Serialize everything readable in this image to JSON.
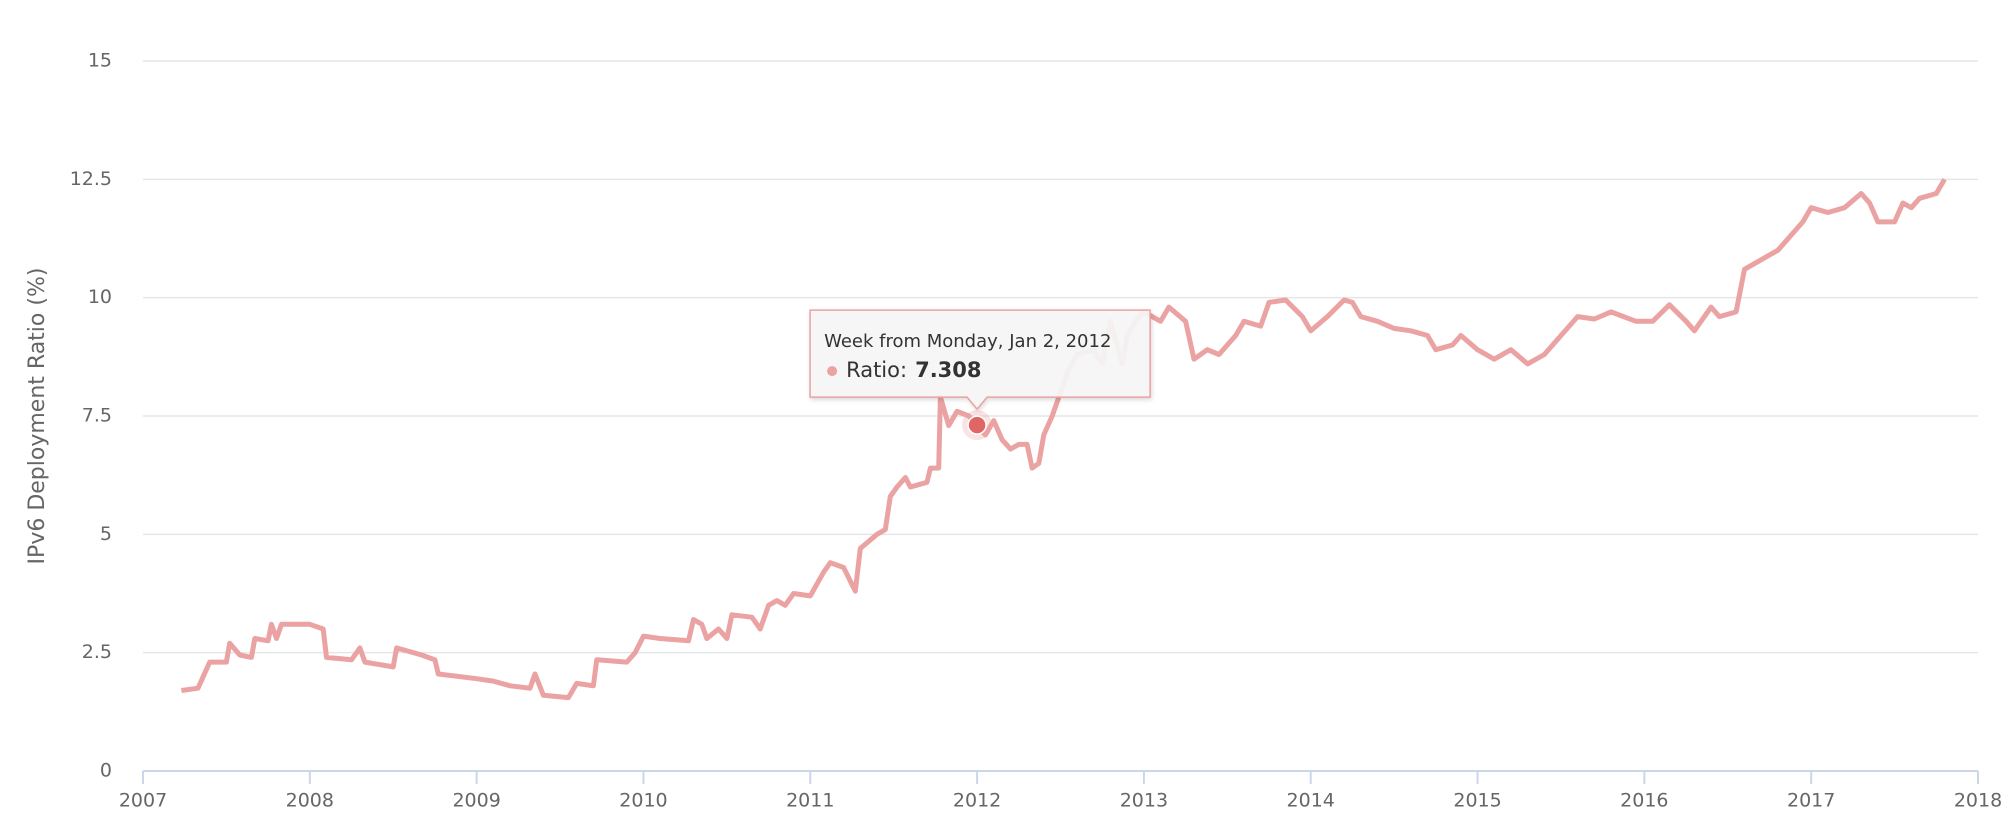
{
  "chart_data": {
    "type": "line",
    "y_label": "IPv6 Deployment Ratio (%)",
    "xlim": [
      2007,
      2018
    ],
    "xticks": [
      2007,
      2008,
      2009,
      2010,
      2011,
      2012,
      2013,
      2014,
      2015,
      2016,
      2017,
      2018
    ],
    "ylim": [
      0,
      15
    ],
    "yticks": [
      0,
      2.5,
      5,
      7.5,
      10,
      12.5,
      15
    ],
    "grid": true,
    "color": "#eba2a2",
    "x": [
      2007.23,
      2007.33,
      2007.4,
      2007.5,
      2007.52,
      2007.58,
      2007.65,
      2007.67,
      2007.75,
      2007.77,
      2007.8,
      2007.83,
      2008.0,
      2008.08,
      2008.1,
      2008.25,
      2008.3,
      2008.33,
      2008.5,
      2008.52,
      2008.67,
      2008.75,
      2008.77,
      2009.0,
      2009.1,
      2009.2,
      2009.32,
      2009.35,
      2009.4,
      2009.55,
      2009.6,
      2009.7,
      2009.72,
      2009.9,
      2009.95,
      2010.0,
      2010.1,
      2010.27,
      2010.3,
      2010.35,
      2010.38,
      2010.45,
      2010.5,
      2010.53,
      2010.65,
      2010.7,
      2010.75,
      2010.8,
      2010.85,
      2010.9,
      2011.0,
      2011.08,
      2011.12,
      2011.2,
      2011.27,
      2011.3,
      2011.4,
      2011.45,
      2011.48,
      2011.52,
      2011.57,
      2011.6,
      2011.7,
      2011.72,
      2011.77,
      2011.78,
      2011.83,
      2011.88,
      2011.95,
      2012.0,
      2012.05,
      2012.1,
      2012.15,
      2012.2,
      2012.25,
      2012.3,
      2012.33,
      2012.37,
      2012.4,
      2012.45,
      2012.5,
      2012.55,
      2012.6,
      2012.7,
      2012.75,
      2012.8,
      2012.87,
      2012.9,
      2012.95,
      2013.0,
      2013.1,
      2013.15,
      2013.25,
      2013.3,
      2013.38,
      2013.45,
      2013.55,
      2013.6,
      2013.7,
      2013.75,
      2013.85,
      2013.95,
      2014.0,
      2014.1,
      2014.2,
      2014.25,
      2014.3,
      2014.4,
      2014.5,
      2014.6,
      2014.7,
      2014.75,
      2014.85,
      2014.9,
      2015.0,
      2015.1,
      2015.2,
      2015.3,
      2015.4,
      2015.5,
      2015.6,
      2015.7,
      2015.8,
      2015.95,
      2016.05,
      2016.15,
      2016.25,
      2016.3,
      2016.4,
      2016.45,
      2016.55,
      2016.6,
      2016.7,
      2016.8,
      2016.9,
      2016.95,
      2017.0,
      2017.1,
      2017.2,
      2017.3,
      2017.35,
      2017.4,
      2017.5,
      2017.55,
      2017.6,
      2017.65,
      2017.75,
      2017.8
    ],
    "values": [
      1.7,
      1.75,
      2.3,
      2.3,
      2.7,
      2.45,
      2.4,
      2.8,
      2.75,
      3.1,
      2.8,
      3.1,
      3.1,
      3.0,
      2.4,
      2.35,
      2.6,
      2.3,
      2.2,
      2.6,
      2.45,
      2.35,
      2.05,
      1.95,
      1.9,
      1.8,
      1.75,
      2.05,
      1.6,
      1.55,
      1.85,
      1.8,
      2.35,
      2.3,
      2.5,
      2.85,
      2.8,
      2.75,
      3.2,
      3.1,
      2.8,
      3.0,
      2.8,
      3.3,
      3.25,
      3.0,
      3.5,
      3.6,
      3.5,
      3.75,
      3.7,
      4.2,
      4.4,
      4.3,
      3.8,
      4.7,
      5.0,
      5.1,
      5.8,
      6.0,
      6.2,
      6.0,
      6.1,
      6.4,
      6.4,
      7.9,
      7.3,
      7.6,
      7.5,
      7.308,
      7.1,
      7.4,
      7.0,
      6.8,
      6.9,
      6.9,
      6.4,
      6.5,
      7.1,
      7.5,
      8.0,
      8.5,
      8.8,
      8.9,
      8.6,
      9.5,
      8.6,
      9.2,
      9.5,
      9.7,
      9.5,
      9.8,
      9.5,
      8.7,
      8.9,
      8.8,
      9.2,
      9.5,
      9.4,
      9.9,
      9.95,
      9.6,
      9.3,
      9.6,
      9.95,
      9.9,
      9.6,
      9.5,
      9.35,
      9.3,
      9.2,
      8.9,
      9.0,
      9.2,
      8.9,
      8.7,
      8.9,
      8.6,
      8.8,
      9.2,
      9.6,
      9.55,
      9.7,
      9.5,
      9.5,
      9.85,
      9.5,
      9.3,
      9.8,
      9.6,
      9.7,
      10.6,
      10.8,
      11.0,
      11.4,
      11.6,
      11.9,
      11.8,
      11.9,
      12.2,
      12.0,
      11.6,
      11.6,
      12.0,
      11.9,
      12.1,
      12.2,
      12.5
    ],
    "tooltip": {
      "title": "Week from Monday, Jan 2, 2012",
      "label": "Ratio:",
      "value": 7.308
    }
  }
}
